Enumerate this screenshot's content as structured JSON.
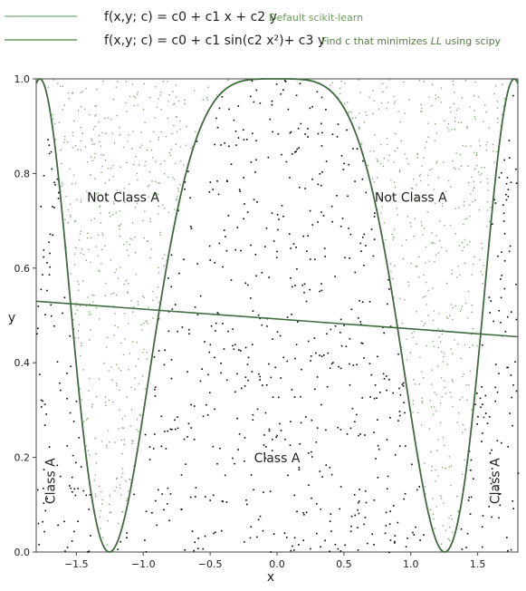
{
  "chart_data": {
    "type": "scatter",
    "xlabel": "x",
    "ylabel": "y",
    "xlim": [
      -1.8,
      1.8
    ],
    "ylim": [
      0.0,
      1.0
    ],
    "xticks": [
      -1.5,
      -1.0,
      -0.5,
      0.0,
      0.5,
      1.0,
      1.5
    ],
    "xtick_labels": [
      "−1.5",
      "−1.0",
      "−0.5",
      "0.0",
      "0.5",
      "1.0",
      "1.5"
    ],
    "yticks": [
      0.0,
      0.2,
      0.4,
      0.6,
      0.8,
      1.0
    ],
    "ytick_labels": [
      "0.0",
      "0.2",
      "0.4",
      "0.6",
      "0.8",
      "1.0"
    ],
    "grid": false,
    "legend_position": "above plot, left",
    "legend": [
      {
        "label": "f(x,y; c) = c0 + c1 x + c2 y",
        "note": "Default scikit-learn",
        "color": "#8fbc8f",
        "style": "line"
      },
      {
        "label": "f(x,y; c) = c0 + c1 sin(c2 x²)+ c3 y",
        "note_parts": [
          "Find c that minimizes ",
          "LL",
          " using scipy"
        ],
        "color": "#6b9a5a",
        "style": "line"
      }
    ],
    "series": [
      {
        "kind": "line",
        "x": [
          -1.8,
          1.8
        ],
        "y": [
          0.53,
          0.455
        ],
        "color": "#3f6b3f"
      },
      {
        "kind": "curve",
        "function": "0.5 + 0.5*cos(2*x^2)",
        "x_range": [
          -1.8,
          1.8
        ],
        "y_at": {
          "-1.8": 0.99,
          "-1.25": 0.0,
          "0.0": 1.0,
          "1.25": 0.0,
          "1.8": 0.99
        },
        "color": "#3f6b3f"
      },
      {
        "kind": "points",
        "name": "Class A",
        "color": "#000000",
        "count": 800,
        "rule": "inside curve (y below curve)"
      },
      {
        "kind": "points",
        "name": "Not Class A",
        "color": "#7a9e6f",
        "count": 1000,
        "rule": "outside curve (y above curve)"
      }
    ],
    "annotations": [
      {
        "text": "Not Class A",
        "x": -1.15,
        "y": 0.74
      },
      {
        "text": "Not Class A",
        "x": 1.0,
        "y": 0.74
      },
      {
        "text": "Class A",
        "x": 0.0,
        "y": 0.19
      },
      {
        "text": "Class A",
        "x": -1.66,
        "y": 0.15,
        "rotated": true
      },
      {
        "text": "Class A",
        "x": 1.66,
        "y": 0.15,
        "rotated": true
      }
    ]
  }
}
